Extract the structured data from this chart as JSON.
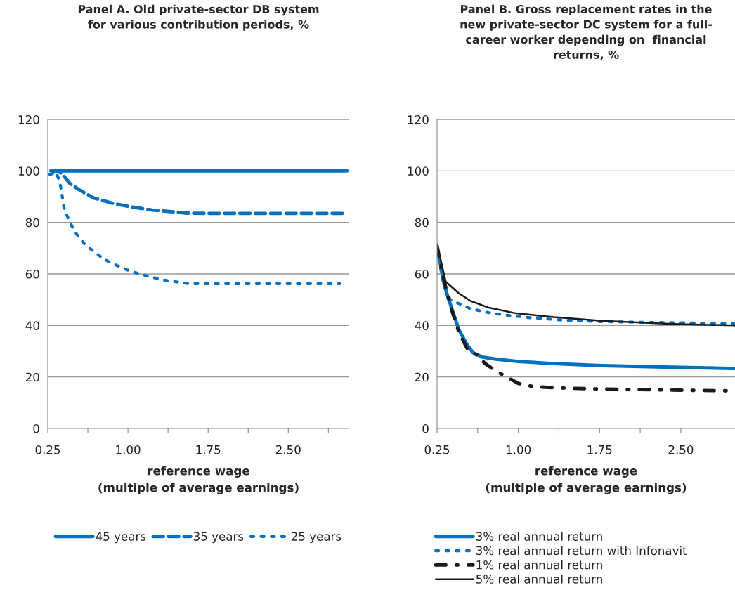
{
  "chart_data": [
    {
      "type": "line",
      "title": "Panel A. Old private-sector DB system\nfor various contribution periods, %",
      "xlabel": "reference wage\n(multiple of average earnings)",
      "xlim": [
        0.25,
        3.07
      ],
      "xticks": [
        0.25,
        {
          "value": 0.625,
          "label": null
        },
        {
          "value": 1.0,
          "label": "1.00"
        },
        {
          "value": 1.375,
          "label": null
        },
        {
          "value": 1.75,
          "label": "1.75"
        },
        {
          "value": 2.125,
          "label": null
        },
        {
          "value": 2.5,
          "label": "2.50"
        },
        {
          "value": 2.875,
          "label": null
        }
      ],
      "ylim": [
        0,
        120
      ],
      "yticks": [
        0,
        20,
        40,
        60,
        80,
        100,
        120
      ],
      "grid": "y",
      "legend": "bottom",
      "series": [
        {
          "name": "45 years",
          "color": "#0070c0",
          "line_style": "solid",
          "x": [
            0.28,
            3.05
          ],
          "values": [
            100,
            100
          ]
        },
        {
          "name": "35 years",
          "color": "#0070c0",
          "line_style": "dashed",
          "x": [
            0.28,
            0.34,
            0.38,
            0.46,
            0.55,
            0.68,
            0.85,
            1.03,
            1.23,
            1.45,
            1.55,
            1.77,
            3.05
          ],
          "values": [
            100,
            100,
            99,
            95,
            92.5,
            89.5,
            87.5,
            86,
            84.8,
            84,
            83.6,
            83.5,
            83.5
          ]
        },
        {
          "name": "25 years",
          "color": "#0070c0",
          "line_style": "dotted",
          "x": [
            0.27,
            0.33,
            0.35,
            0.37,
            0.38,
            0.39,
            0.4,
            0.42,
            0.45,
            0.48,
            0.51,
            0.55,
            0.59,
            0.64,
            0.7,
            0.75,
            0.8,
            0.86,
            0.93,
            0.99,
            1.05,
            1.12,
            1.18,
            1.25,
            1.31,
            1.37,
            1.44,
            1.51,
            1.57,
            2.98
          ],
          "values": [
            98.6,
            99.5,
            97,
            94,
            91.5,
            88.8,
            86,
            83.5,
            80.8,
            78.2,
            76,
            73.8,
            71.8,
            70,
            68.2,
            66.5,
            65.2,
            63.9,
            62.7,
            61.6,
            60.7,
            59.9,
            59.2,
            58.5,
            57.8,
            57.4,
            57,
            56.6,
            56.2,
            56.2
          ]
        }
      ]
    },
    {
      "type": "line",
      "title": "Panel B. Gross replacement rates in the\nnew private-sector DC system for a full-\ncareer worker depending on  financial\nreturns, %",
      "xlabel": "reference wage\n(multiple of average earnings)",
      "xlim": [
        0.25,
        3.0
      ],
      "xticks": [
        0.25,
        {
          "value": 0.625,
          "label": null
        },
        {
          "value": 1.0,
          "label": "1.00"
        },
        {
          "value": 1.375,
          "label": null
        },
        {
          "value": 1.75,
          "label": "1.75"
        },
        {
          "value": 2.125,
          "label": null
        },
        {
          "value": 2.5,
          "label": "2.50"
        }
      ],
      "ylim": [
        0,
        120
      ],
      "yticks": [
        0,
        20,
        40,
        60,
        80,
        100,
        120
      ],
      "grid": "y",
      "legend": "bottom",
      "series": [
        {
          "name": "3% real annual return",
          "color": "#0070c0",
          "line_style": "solid",
          "x": [
            0.25,
            0.28,
            0.32,
            0.39,
            0.45,
            0.52,
            0.58,
            0.67,
            0.78,
            1.0,
            1.33,
            1.77,
            2.42,
            3.0
          ],
          "values": [
            70,
            64,
            55,
            46,
            38.5,
            33,
            29.5,
            27.7,
            27,
            26,
            25.2,
            24.4,
            23.8,
            23.3
          ]
        },
        {
          "name": "3% real annual return with Infonavit",
          "color": "#0070c0",
          "line_style": "dotted",
          "x": [
            0.25,
            0.3,
            0.37,
            0.45,
            0.56,
            0.72,
            0.89,
            1.11,
            1.43,
            1.77,
            2.2,
            3.0
          ],
          "values": [
            70,
            58,
            50,
            48.5,
            46.5,
            45,
            44,
            43,
            42,
            41.5,
            41.2,
            40.7
          ]
        },
        {
          "name": "1% real annual return",
          "color": "#1a1a1a",
          "line_style": "dashdot",
          "x": [
            0.25,
            0.3,
            0.37,
            0.45,
            0.54,
            0.63,
            0.69,
            0.79,
            1.0,
            1.13,
            1.33,
            1.77,
            2.42,
            3.0
          ],
          "values": [
            71,
            60,
            48,
            37.5,
            30,
            28.4,
            25.3,
            22.4,
            17.5,
            16.3,
            15.8,
            15.3,
            14.9,
            14.6
          ]
        },
        {
          "name": "5% real annual return",
          "color": "#1a1a1a",
          "line_style": "solid",
          "x": [
            0.25,
            0.33,
            0.45,
            0.56,
            0.72,
            0.98,
            1.33,
            1.77,
            2.42,
            3.0
          ],
          "values": [
            71.5,
            57,
            52.5,
            49.5,
            47,
            44.7,
            43.2,
            41.8,
            40.6,
            40
          ]
        }
      ]
    }
  ]
}
